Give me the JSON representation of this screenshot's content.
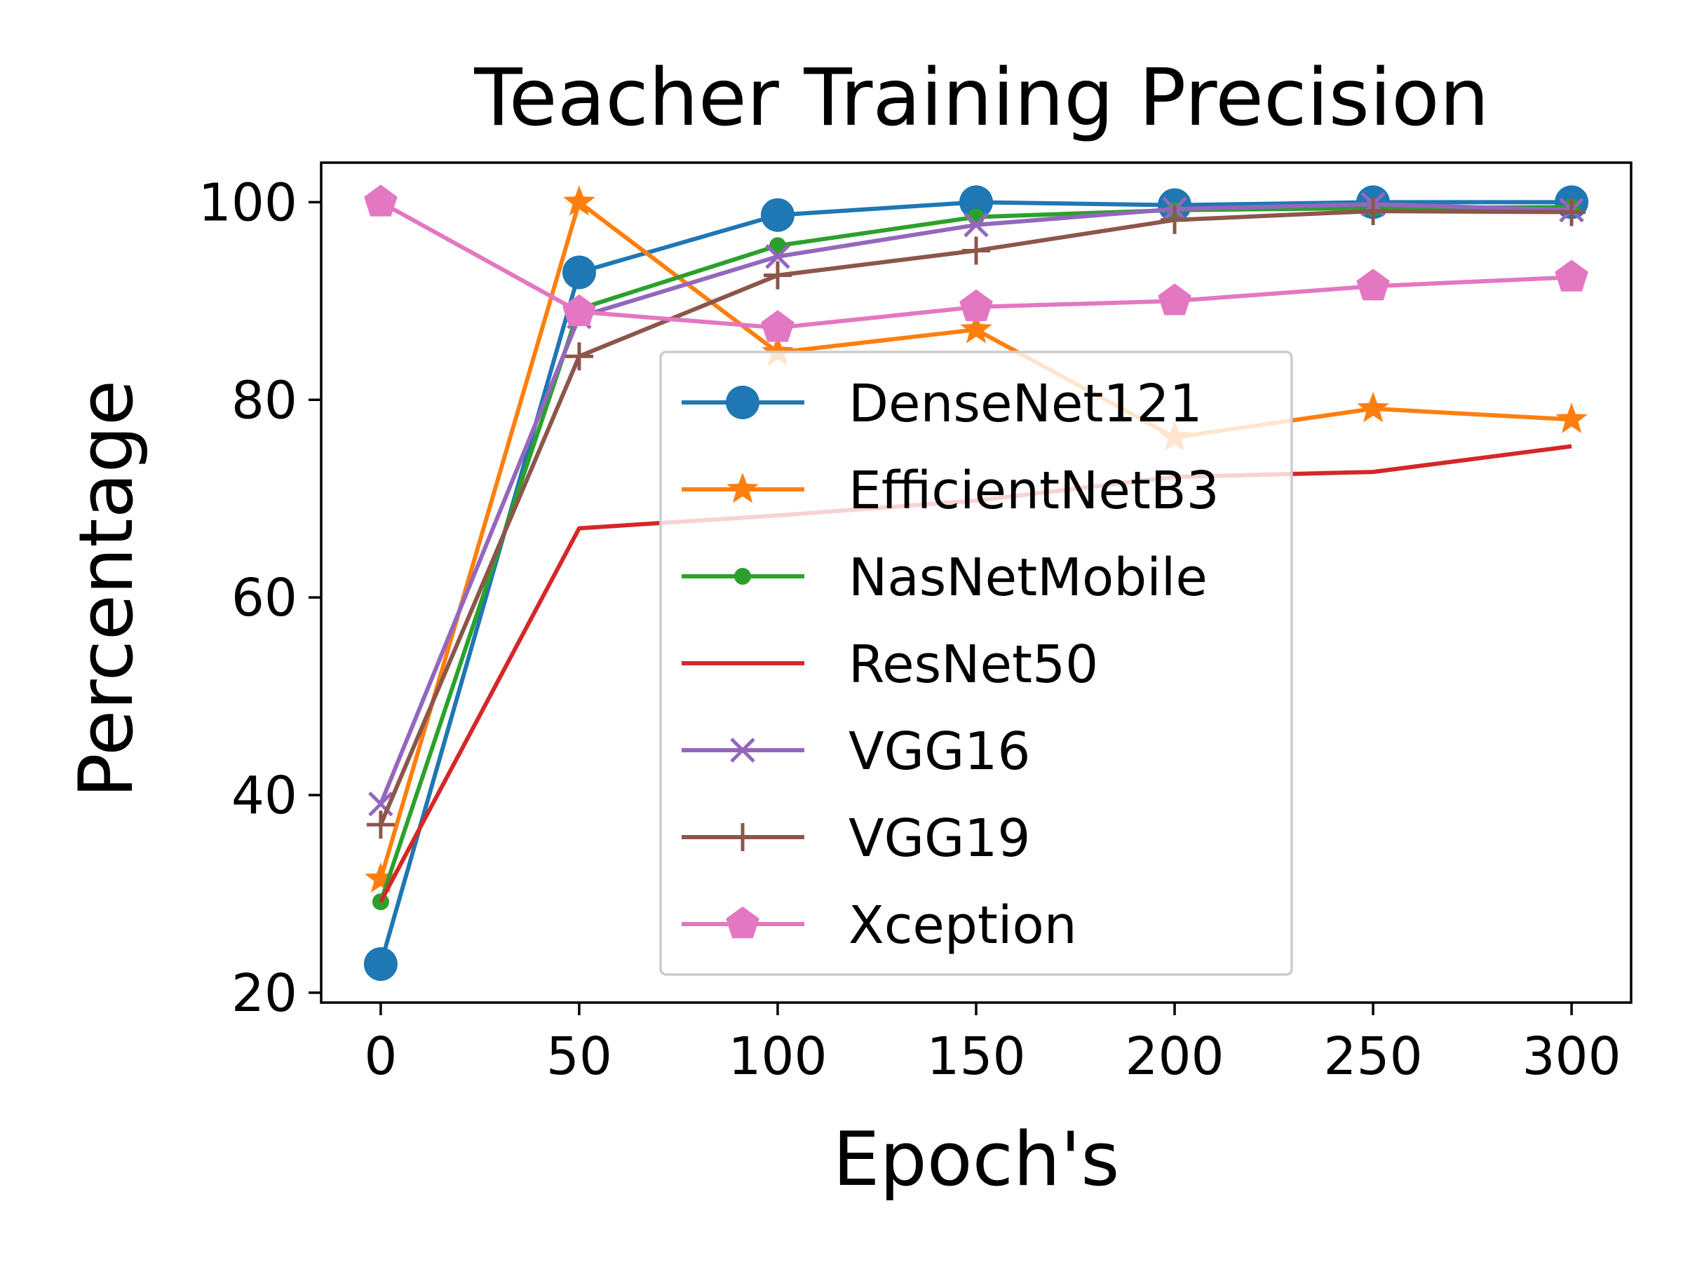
{
  "chart_data": {
    "type": "line",
    "title": "Teacher Training Precision",
    "xlabel": "Epoch's",
    "ylabel": "Percentage",
    "x": [
      0,
      50,
      100,
      150,
      200,
      250,
      300
    ],
    "xticks": [
      0,
      50,
      100,
      150,
      200,
      250,
      300
    ],
    "yticks": [
      20,
      40,
      60,
      80,
      100
    ],
    "xlim": [
      -15,
      315
    ],
    "ylim": [
      19,
      104
    ],
    "grid": false,
    "legend_position": "center",
    "series": [
      {
        "name": "DenseNet121",
        "color": "#1f77b4",
        "marker": "circle",
        "values": [
          22.9,
          92.9,
          98.7,
          100.0,
          99.7,
          100.0,
          100.0
        ]
      },
      {
        "name": "EfficientNetB3",
        "color": "#ff7f0e",
        "marker": "star",
        "values": [
          31.5,
          100.0,
          84.8,
          87.1,
          76.2,
          79.1,
          78.0
        ]
      },
      {
        "name": "NasNetMobile",
        "color": "#2ca02c",
        "marker": "point",
        "values": [
          29.2,
          89.2,
          95.6,
          98.5,
          99.2,
          99.4,
          99.5
        ]
      },
      {
        "name": "ResNet50",
        "color": "#d62728",
        "marker": "none",
        "values": [
          29.2,
          67.0,
          68.3,
          69.8,
          72.2,
          72.7,
          75.3
        ]
      },
      {
        "name": "VGG16",
        "color": "#9467bd",
        "marker": "x",
        "values": [
          39.1,
          88.4,
          94.5,
          97.7,
          99.3,
          99.8,
          99.2
        ]
      },
      {
        "name": "VGG19",
        "color": "#8c564b",
        "marker": "plus",
        "values": [
          37.0,
          84.4,
          92.6,
          95.1,
          98.2,
          99.1,
          99.0
        ]
      },
      {
        "name": "Xception",
        "color": "#e377c2",
        "marker": "pentagon",
        "values": [
          100.0,
          88.9,
          87.3,
          89.4,
          90.0,
          91.5,
          92.4
        ]
      }
    ]
  }
}
